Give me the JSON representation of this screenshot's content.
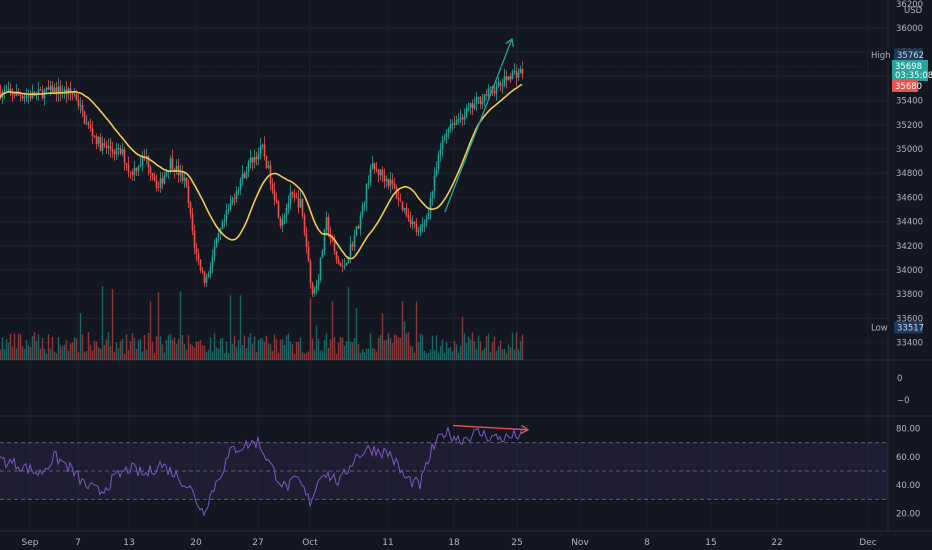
{
  "chart_data": {
    "type": "candlestick",
    "currency": "USD",
    "price_axis": {
      "ticks": [
        36000,
        35800,
        35600,
        35400,
        35200,
        35000,
        34800,
        34600,
        34400,
        34200,
        34000,
        33800,
        33600,
        33400
      ],
      "top_label": "36200"
    },
    "x_axis": {
      "tick_labels": [
        "Sep",
        "7",
        "13",
        "20",
        "27",
        "Oct",
        "11",
        "18",
        "25",
        "Nov",
        "8",
        "15",
        "22",
        "Dec"
      ]
    },
    "markers": {
      "high": {
        "label": "High",
        "value": 35762
      },
      "low": {
        "label": "Low",
        "value": 33517
      },
      "last_price": {
        "value": "35698",
        "countdown": "03:35:08"
      },
      "previous_close": {
        "value": "35680"
      }
    },
    "moving_average": {
      "color": "#f2c94c"
    },
    "trend_arrows": [
      {
        "panel": "price",
        "from": [
          445,
          34480
        ],
        "to": [
          512,
          35910
        ],
        "color": "#26a69a"
      },
      {
        "panel": "rsi",
        "from": [
          453,
          82
        ],
        "to": [
          528,
          79
        ],
        "color": "#ef5350"
      }
    ],
    "oscillator_axis": {
      "ticks": [
        "0",
        "−0"
      ]
    },
    "rsi_axis": {
      "ticks": [
        "80.00",
        "60.00",
        "40.00",
        "20.00"
      ],
      "upper_band": 70,
      "lower_band": 30,
      "mid": 50,
      "line_color": "#7e57c2"
    },
    "colors": {
      "up": "#26a69a",
      "down": "#ef5350",
      "background": "#131722"
    }
  }
}
